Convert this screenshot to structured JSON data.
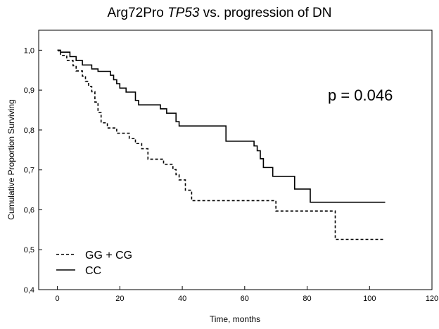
{
  "chart_data": {
    "type": "line",
    "title_parts": {
      "prefix": "Arg72Pro ",
      "gene": "TP53",
      "suffix": " vs. progression of DN"
    },
    "xlabel": "Time, months",
    "ylabel": "Cumulative Proportion Surviving",
    "xlim": [
      -6,
      120
    ],
    "ylim": [
      0.4,
      1.05
    ],
    "x_ticks": [
      "0",
      "20",
      "40",
      "60",
      "80",
      "100",
      "120"
    ],
    "y_ticks": [
      "0,4",
      "0,5",
      "0,6",
      "0,7",
      "0,8",
      "0,9",
      "1,0"
    ],
    "annotation": "p = 0.046",
    "legend_position": "bottom-left",
    "grid": false,
    "series": [
      {
        "name": "GG + CG",
        "style": "dashed",
        "color": "#000000",
        "steps": [
          [
            0,
            1.0
          ],
          [
            0.5,
            0.995
          ],
          [
            1,
            0.987
          ],
          [
            3,
            0.974
          ],
          [
            5,
            0.961
          ],
          [
            6,
            0.948
          ],
          [
            8,
            0.935
          ],
          [
            9,
            0.922
          ],
          [
            10,
            0.909
          ],
          [
            11,
            0.896
          ],
          [
            12,
            0.87
          ],
          [
            13,
            0.844
          ],
          [
            14,
            0.818
          ],
          [
            16,
            0.805
          ],
          [
            19,
            0.792
          ],
          [
            23,
            0.779
          ],
          [
            25,
            0.766
          ],
          [
            27,
            0.753
          ],
          [
            29,
            0.727
          ],
          [
            34,
            0.714
          ],
          [
            37,
            0.701
          ],
          [
            38,
            0.688
          ],
          [
            39,
            0.675
          ],
          [
            41,
            0.649
          ],
          [
            43,
            0.623
          ],
          [
            70,
            0.597
          ],
          [
            89,
            0.526
          ],
          [
            105,
            0.526
          ]
        ]
      },
      {
        "name": "CC",
        "style": "solid",
        "color": "#000000",
        "steps": [
          [
            0,
            1.0
          ],
          [
            1,
            0.995
          ],
          [
            4,
            0.984
          ],
          [
            6,
            0.974
          ],
          [
            8,
            0.963
          ],
          [
            11,
            0.953
          ],
          [
            13,
            0.947
          ],
          [
            17,
            0.937
          ],
          [
            18,
            0.926
          ],
          [
            19,
            0.916
          ],
          [
            20,
            0.905
          ],
          [
            22,
            0.895
          ],
          [
            25,
            0.874
          ],
          [
            26,
            0.863
          ],
          [
            33,
            0.853
          ],
          [
            35,
            0.842
          ],
          [
            38,
            0.821
          ],
          [
            39,
            0.81
          ],
          [
            54,
            0.772
          ],
          [
            63,
            0.76
          ],
          [
            64,
            0.748
          ],
          [
            65,
            0.728
          ],
          [
            66,
            0.706
          ],
          [
            69,
            0.684
          ],
          [
            76,
            0.652
          ],
          [
            81,
            0.619
          ],
          [
            105,
            0.619
          ]
        ]
      }
    ]
  }
}
